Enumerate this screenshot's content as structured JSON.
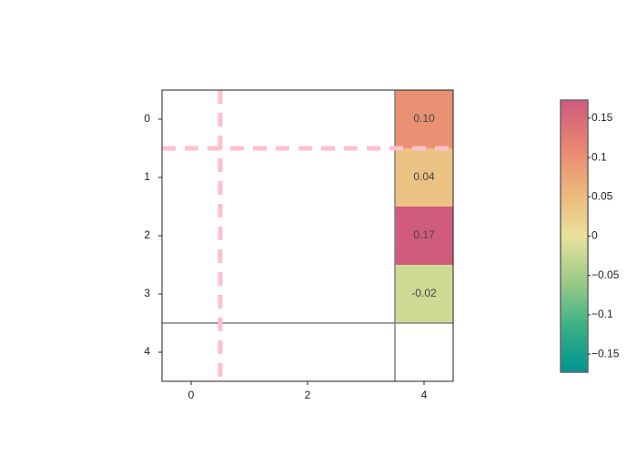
{
  "chart_data": {
    "type": "heatmap",
    "x": [
      0,
      1,
      2,
      3,
      4
    ],
    "y": [
      0,
      1,
      2,
      3,
      4
    ],
    "z": [
      [
        null,
        null,
        null,
        null,
        0.1
      ],
      [
        null,
        null,
        null,
        null,
        0.04
      ],
      [
        null,
        null,
        null,
        null,
        0.17
      ],
      [
        null,
        null,
        null,
        null,
        -0.02
      ],
      [
        null,
        null,
        null,
        null,
        null
      ]
    ],
    "value_labels": [
      [
        null,
        null,
        null,
        null,
        "0.10"
      ],
      [
        null,
        null,
        null,
        null,
        "0.04"
      ],
      [
        null,
        null,
        null,
        null,
        "0.17"
      ],
      [
        null,
        null,
        null,
        null,
        "-0.02"
      ],
      [
        null,
        null,
        null,
        null,
        null
      ]
    ],
    "xlim": [
      -0.5,
      4.5
    ],
    "xticks": [
      0,
      2,
      4
    ],
    "ylim": [
      4.5,
      -0.5
    ],
    "yticks": [
      0,
      1,
      2,
      3,
      4
    ],
    "colorscale": [
      "#009392",
      "#39b185",
      "#9ccb86",
      "#e9e29c",
      "#eeb479",
      "#e88471",
      "#cf597e"
    ],
    "clim": [
      -0.173,
      0.173
    ],
    "cticks": [
      0.15,
      0.1,
      0.05,
      0,
      {
        "value": -0.05,
        "label": "−0.05"
      },
      {
        "value": -0.1,
        "label": "−0.1"
      },
      {
        "value": -0.15,
        "label": "−0.15"
      }
    ],
    "lines": [
      {
        "axis": "x",
        "value": 3.5,
        "color": "#808080",
        "dashed": false
      },
      {
        "axis": "y",
        "value": 3.5,
        "color": "#808080",
        "dashed": false
      },
      {
        "axis": "x",
        "value": 0.5,
        "color": "#ffc0cb",
        "dashed": true
      },
      {
        "axis": "y",
        "value": 0.5,
        "color": "#ffc0cb",
        "dashed": true
      }
    ]
  }
}
